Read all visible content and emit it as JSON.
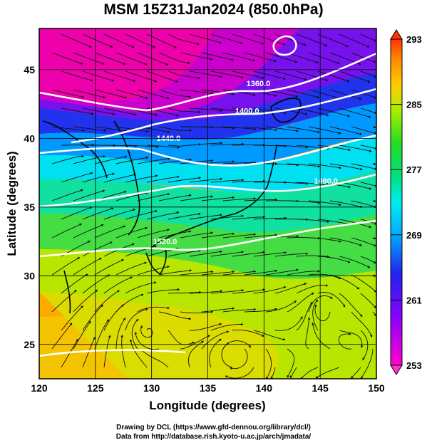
{
  "title": "MSM 15Z31Jan2024 (850.0hPa)",
  "map": {
    "lon_range": [
      120,
      150
    ],
    "lat_range": [
      22.5,
      48
    ],
    "xlabel": "Longitude (degrees)",
    "ylabel": "Latitude  (degrees)",
    "lon_ticks": [
      "120",
      "125",
      "130",
      "135",
      "140",
      "145",
      "150"
    ],
    "lat_ticks": [
      "25",
      "30",
      "35",
      "40",
      "45"
    ],
    "contour_labels": [
      {
        "text": "1360.0",
        "lon": 139.5,
        "lat": 43.8
      },
      {
        "text": "1400.0",
        "lon": 138.5,
        "lat": 41.8
      },
      {
        "text": "1440.0",
        "lon": 131.5,
        "lat": 39.8
      },
      {
        "text": "1480.0",
        "lon": 145.5,
        "lat": 36.7
      },
      {
        "text": "1520.0",
        "lon": 131.2,
        "lat": 32.3
      }
    ]
  },
  "colorbar": {
    "labels": [
      "293",
      "285",
      "277",
      "269",
      "261",
      "253"
    ],
    "vmin": 253,
    "vmax": 293
  },
  "credits": [
    "Drawing by DCL (https://www.gfd-dennou.org/library/dcl/)",
    "Data from http://database.rish.kyoto-u.ac.jp/arch/jmadata/"
  ],
  "colors": {
    "frame": "#000000",
    "contour": "#ffffff",
    "streamline": "#111111"
  }
}
